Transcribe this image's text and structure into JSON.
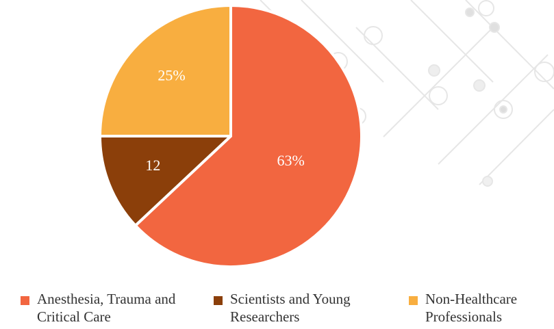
{
  "chart_data": {
    "type": "pie",
    "categories": [
      "Anesthesia, Trauma and Critical Care",
      "Scientists and Young Researchers",
      "Non-Healthcare Professionals"
    ],
    "values": [
      63,
      12,
      25
    ],
    "value_labels": [
      "63%",
      "12",
      "25%"
    ],
    "colors": [
      "#f26640",
      "#8b3f0a",
      "#f8ae40"
    ],
    "legend": "bottom"
  }
}
